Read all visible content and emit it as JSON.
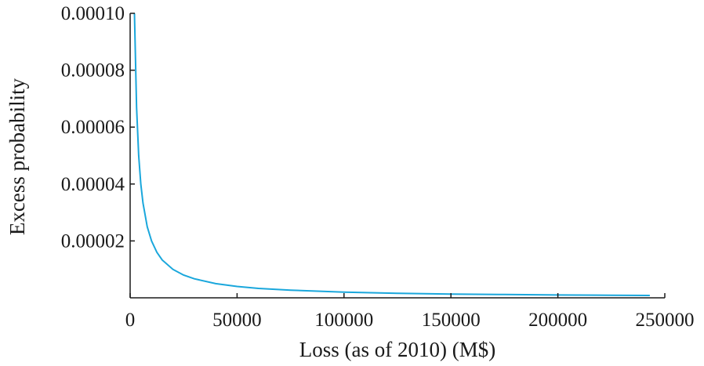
{
  "chart_data": {
    "type": "line",
    "title": "",
    "xlabel": "Loss (as of  2010) (M$)",
    "ylabel": "Excess probability",
    "xlim": [
      0,
      250000
    ],
    "ylim": [
      0,
      0.0001
    ],
    "x_ticks": [
      "0",
      "50000",
      "100000",
      "150000",
      "200000",
      "250000"
    ],
    "x_tick_values": [
      0,
      50000,
      100000,
      150000,
      200000,
      250000
    ],
    "y_ticks": [
      "0.00002",
      "0.00004",
      "0.00006",
      "0.00008",
      "0.00010"
    ],
    "y_tick_values": [
      2e-05,
      4e-05,
      6e-05,
      8e-05,
      0.0001
    ],
    "grid": false,
    "legend": "none",
    "series": [
      {
        "color": "#1aa7dc",
        "x": [
          2000,
          3000,
          4000,
          5000,
          6000,
          8000,
          10000,
          12500,
          15000,
          20000,
          25000,
          30000,
          40000,
          50000,
          60000,
          75000,
          100000,
          125000,
          150000,
          175000,
          200000,
          225000,
          243000
        ],
        "y": [
          0.0001,
          6.7e-05,
          5e-05,
          4e-05,
          3.33e-05,
          2.5e-05,
          2e-05,
          1.6e-05,
          1.33e-05,
          1e-05,
          8e-06,
          6.7e-06,
          5e-06,
          4e-06,
          3.3e-06,
          2.7e-06,
          2e-06,
          1.6e-06,
          1.3e-06,
          1.15e-06,
          1e-06,
          9e-07,
          8.2e-07
        ]
      }
    ]
  }
}
